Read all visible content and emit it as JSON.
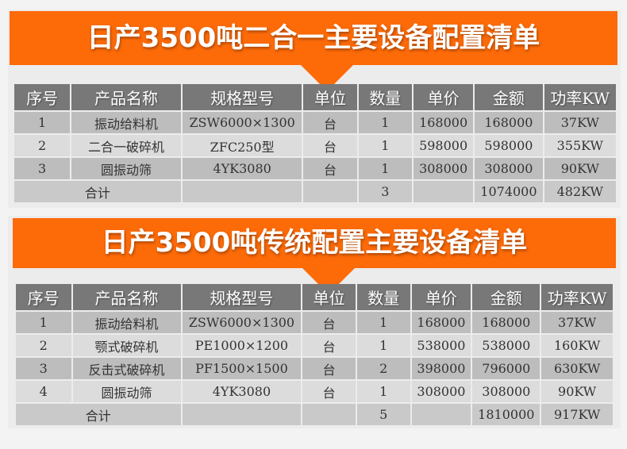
{
  "colors": {
    "banner": "#fd6a08",
    "header": "#787878",
    "row_dark": "#bdbdbd",
    "row_light": "#dcdcdc"
  },
  "headers": [
    "序号",
    "产品名称",
    "规格型号",
    "单位",
    "数量",
    "单价",
    "金额",
    "功率KW"
  ],
  "tables": [
    {
      "title": "日产3500吨二合一主要设备配置清单",
      "rows": [
        [
          "1",
          "振动给料机",
          "ZSW6000×1300",
          "台",
          "1",
          "168000",
          "168000",
          "37KW"
        ],
        [
          "2",
          "二合一破碎机",
          "ZFC250型",
          "台",
          "1",
          "598000",
          "598000",
          "355KW"
        ],
        [
          "3",
          "圆振动筛",
          "4YK3080",
          "台",
          "1",
          "308000",
          "308000",
          "90KW"
        ]
      ],
      "total": {
        "label": "合计",
        "quantity": "3",
        "amount": "1074000",
        "power": "482KW"
      }
    },
    {
      "title": "日产3500吨传统配置主要设备清单",
      "rows": [
        [
          "1",
          "振动给料机",
          "ZSW6000×1300",
          "台",
          "1",
          "168000",
          "168000",
          "37KW"
        ],
        [
          "2",
          "颚式破碎机",
          "PE1000×1200",
          "台",
          "1",
          "538000",
          "538000",
          "160KW"
        ],
        [
          "3",
          "反击式破碎机",
          "PF1500×1500",
          "台",
          "2",
          "398000",
          "796000",
          "630KW"
        ],
        [
          "4",
          "圆振动筛",
          "4YK3080",
          "台",
          "1",
          "308000",
          "308000",
          "90KW"
        ]
      ],
      "total": {
        "label": "合计",
        "quantity": "5",
        "amount": "1810000",
        "power": "917KW"
      }
    }
  ]
}
